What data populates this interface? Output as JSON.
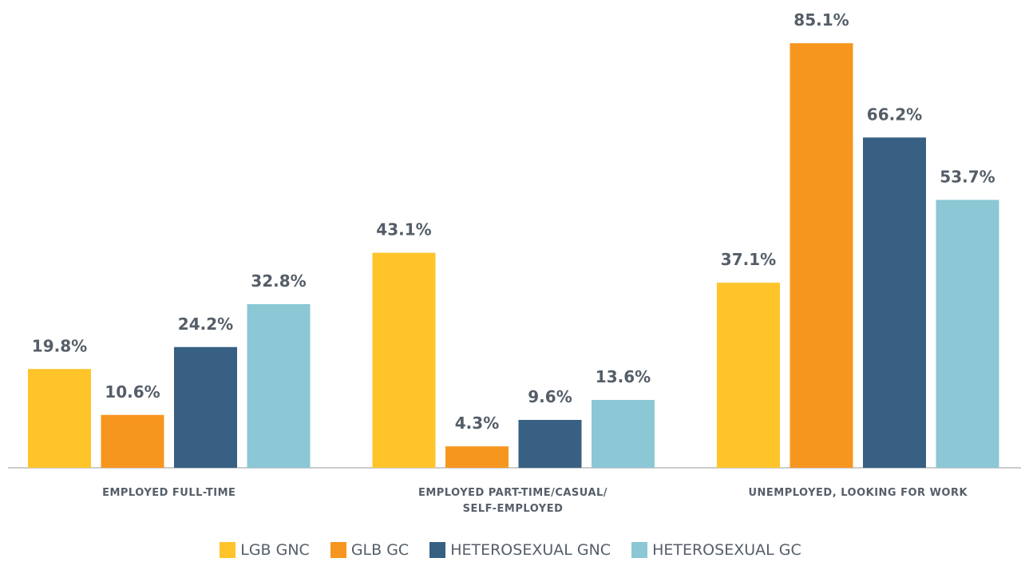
{
  "chart_data": {
    "type": "bar",
    "categories": [
      "EMPLOYED FULL-TIME",
      "EMPLOYED PART-TIME/CASUAL/ SELF-EMPLOYED",
      "UNEMPLOYED, LOOKING FOR WORK"
    ],
    "series": [
      {
        "name": "LGB GNC",
        "color": "#fec42a",
        "values": [
          19.8,
          43.1,
          37.1
        ],
        "value_labels": [
          "19.8%",
          "43.1%",
          "37.1%"
        ]
      },
      {
        "name": "GLB GC",
        "color": "#f7961e",
        "values": [
          10.6,
          4.3,
          85.1
        ],
        "value_labels": [
          "10.6%",
          "4.3%",
          "85.1%"
        ]
      },
      {
        "name": "HETEROSEXUAL GNC",
        "color": "#376083",
        "values": [
          24.2,
          9.6,
          66.2
        ],
        "value_labels": [
          "24.2%",
          "9.6%",
          "66.2%"
        ]
      },
      {
        "name": "HETEROSEXUAL GC",
        "color": "#8bc7d4",
        "values": [
          32.8,
          13.6,
          53.7
        ],
        "value_labels": [
          "32.8%",
          "13.6%",
          "53.7%"
        ]
      }
    ]
  }
}
